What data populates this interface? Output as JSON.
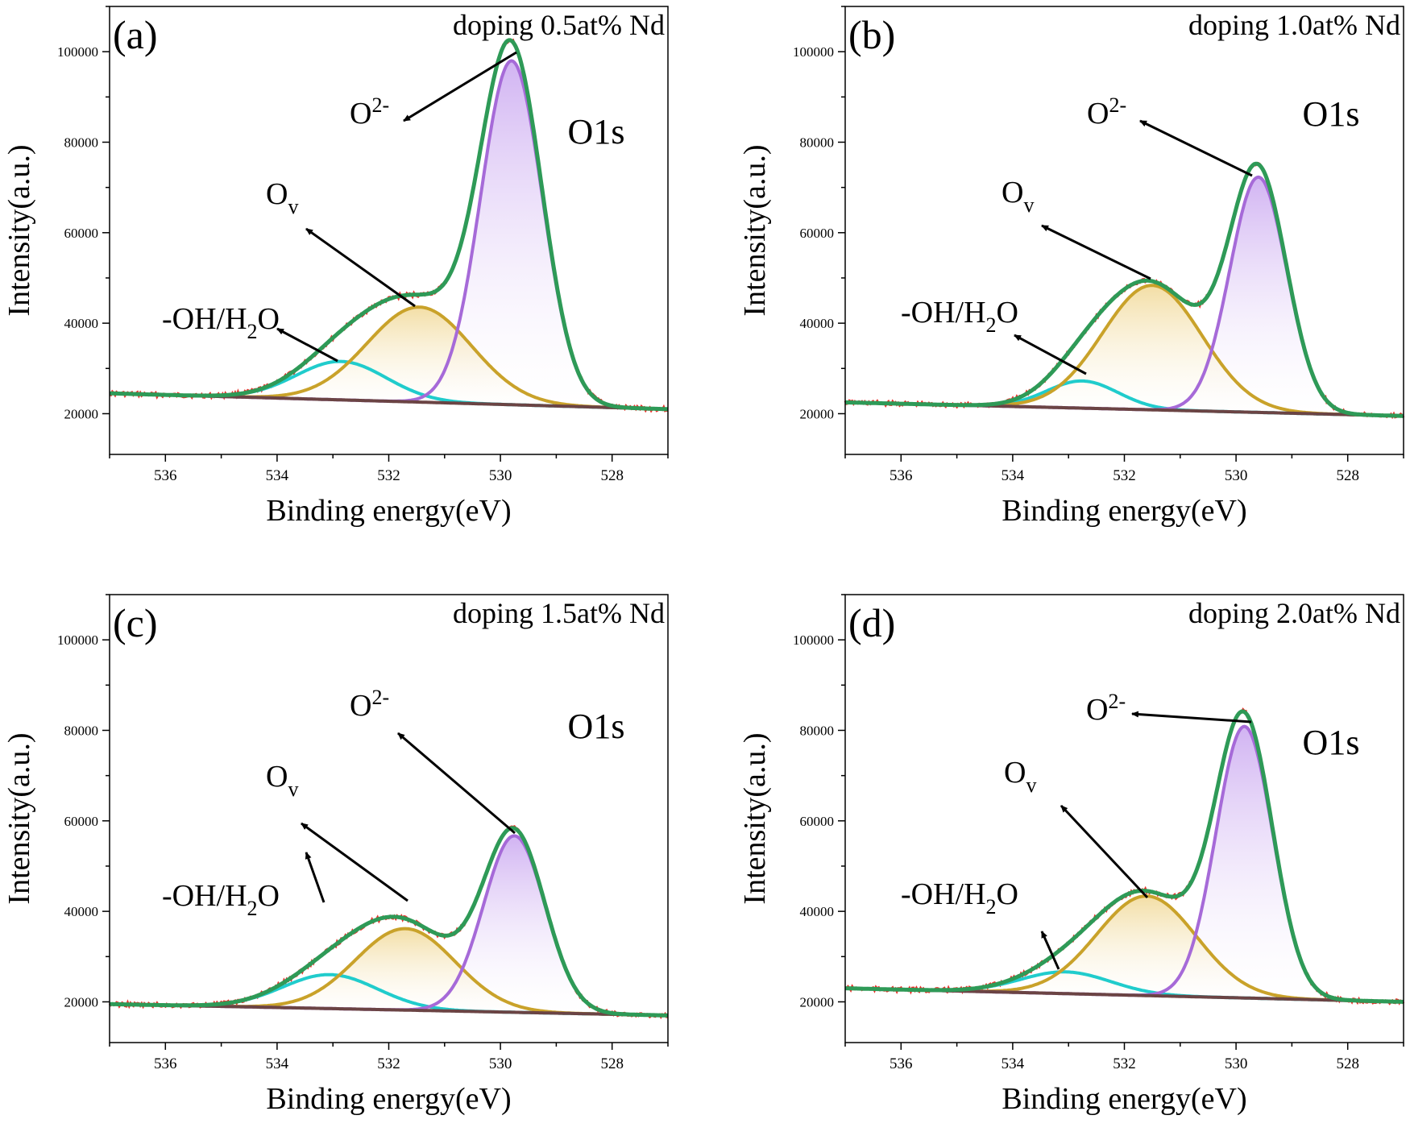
{
  "chart_data": [
    {
      "type": "line",
      "panel_label": "(a)",
      "condition": "doping 0.5at% Nd",
      "region": "O1s",
      "xlabel": "Binding energy(eV)",
      "ylabel": "Intensity(a.u.)",
      "xlim": [
        537,
        527
      ],
      "ylim": [
        11000,
        110000
      ],
      "x_ticks": [
        "536",
        "534",
        "532",
        "530",
        "528"
      ],
      "y_ticks": [
        "20000",
        "40000",
        "60000",
        "80000",
        "100000"
      ],
      "background": {
        "y_start": 24500,
        "y_end": 21000
      },
      "components": [
        {
          "name": "O2-",
          "center_eV": 529.8,
          "fwhm_eV": 1.3,
          "height": 76000
        },
        {
          "name": "Ov",
          "center_eV": 531.45,
          "fwhm_eV": 2.2,
          "height": 21000
        },
        {
          "name": "-OH/H2O",
          "center_eV": 532.85,
          "fwhm_eV": 1.9,
          "height": 8500
        }
      ],
      "annotations": [
        {
          "label": "O",
          "sup": "2-",
          "sub": "",
          "points_to": "O2- peak"
        },
        {
          "label": "O",
          "sup": "",
          "sub": "v",
          "points_to": "Ov peak"
        },
        {
          "label": "-OH/H",
          "sub": "2",
          "tail": "O",
          "points_to": "-OH/H2O peak"
        }
      ]
    },
    {
      "type": "line",
      "panel_label": "(b)",
      "condition": "doping 1.0at% Nd",
      "region": "O1s",
      "xlabel": "Binding energy(eV)",
      "ylabel": "Intensity(a.u.)",
      "xlim": [
        537,
        527
      ],
      "ylim": [
        11000,
        110000
      ],
      "x_ticks": [
        "536",
        "534",
        "532",
        "530",
        "528"
      ],
      "y_ticks": [
        "20000",
        "40000",
        "60000",
        "80000",
        "100000"
      ],
      "background": {
        "y_start": 22500,
        "y_end": 19500
      },
      "components": [
        {
          "name": "O2-",
          "center_eV": 529.6,
          "fwhm_eV": 1.2,
          "height": 52000
        },
        {
          "name": "Ov",
          "center_eV": 531.5,
          "fwhm_eV": 2.1,
          "height": 27500
        },
        {
          "name": "-OH/H2O",
          "center_eV": 532.75,
          "fwhm_eV": 1.5,
          "height": 6000
        }
      ],
      "annotations": [
        {
          "label": "O",
          "sup": "2-",
          "sub": "",
          "points_to": "O2- peak"
        },
        {
          "label": "O",
          "sup": "",
          "sub": "v",
          "points_to": "Ov peak"
        },
        {
          "label": "-OH/H",
          "sub": "2",
          "tail": "O",
          "points_to": "-OH/H2O peak"
        }
      ]
    },
    {
      "type": "line",
      "panel_label": "(c)",
      "condition": "doping 1.5at% Nd",
      "region": "O1s",
      "xlabel": "Binding energy(eV)",
      "ylabel": "Intensity(a.u.)",
      "xlim": [
        537,
        527
      ],
      "ylim": [
        11000,
        110000
      ],
      "x_ticks": [
        "536",
        "534",
        "532",
        "530",
        "528"
      ],
      "y_ticks": [
        "20000",
        "40000",
        "60000",
        "80000",
        "100000"
      ],
      "background": {
        "y_start": 19500,
        "y_end": 17000
      },
      "components": [
        {
          "name": "O2-",
          "center_eV": 529.75,
          "fwhm_eV": 1.3,
          "height": 39000
        },
        {
          "name": "Ov",
          "center_eV": 531.7,
          "fwhm_eV": 2.1,
          "height": 18000
        },
        {
          "name": "-OH/H2O",
          "center_eV": 533.05,
          "fwhm_eV": 2.0,
          "height": 7500
        }
      ],
      "annotations": [
        {
          "label": "O",
          "sup": "2-",
          "sub": "",
          "points_to": "O2- peak"
        },
        {
          "label": "O",
          "sup": "",
          "sub": "v",
          "points_to": "Ov peak"
        },
        {
          "label": "-OH/H",
          "sub": "2",
          "tail": "O",
          "points_to": "-OH/H2O peak"
        }
      ]
    },
    {
      "type": "line",
      "panel_label": "(d)",
      "condition": "doping 2.0at% Nd",
      "region": "O1s",
      "xlabel": "Binding energy(eV)",
      "ylabel": "Intensity(a.u.)",
      "xlim": [
        537,
        527
      ],
      "ylim": [
        11000,
        110000
      ],
      "x_ticks": [
        "536",
        "534",
        "532",
        "530",
        "528"
      ],
      "y_ticks": [
        "20000",
        "40000",
        "60000",
        "80000",
        "100000"
      ],
      "background": {
        "y_start": 23000,
        "y_end": 20000
      },
      "components": [
        {
          "name": "O2-",
          "center_eV": 529.85,
          "fwhm_eV": 1.2,
          "height": 60000
        },
        {
          "name": "Ov",
          "center_eV": 531.6,
          "fwhm_eV": 2.1,
          "height": 22000
        },
        {
          "name": "-OH/H2O",
          "center_eV": 533.05,
          "fwhm_eV": 1.9,
          "height": 4800
        }
      ],
      "annotations": [
        {
          "label": "O",
          "sup": "2-",
          "sub": "",
          "points_to": "O2- peak"
        },
        {
          "label": "O",
          "sup": "",
          "sub": "v",
          "points_to": "Ov peak"
        },
        {
          "label": "-OH/H",
          "sub": "2",
          "tail": "O",
          "points_to": "-OH/H2O peak"
        }
      ]
    }
  ],
  "colors": {
    "raw": "#e8322c",
    "envelope": "#2e9a57",
    "o2": "#a66ad8",
    "o2_fill": "#c9a6f0",
    "ov": "#c9a22a",
    "ov_fill": "#f2dca0",
    "oh": "#20cccc",
    "background": "#6b4444",
    "axis": "#000000"
  }
}
